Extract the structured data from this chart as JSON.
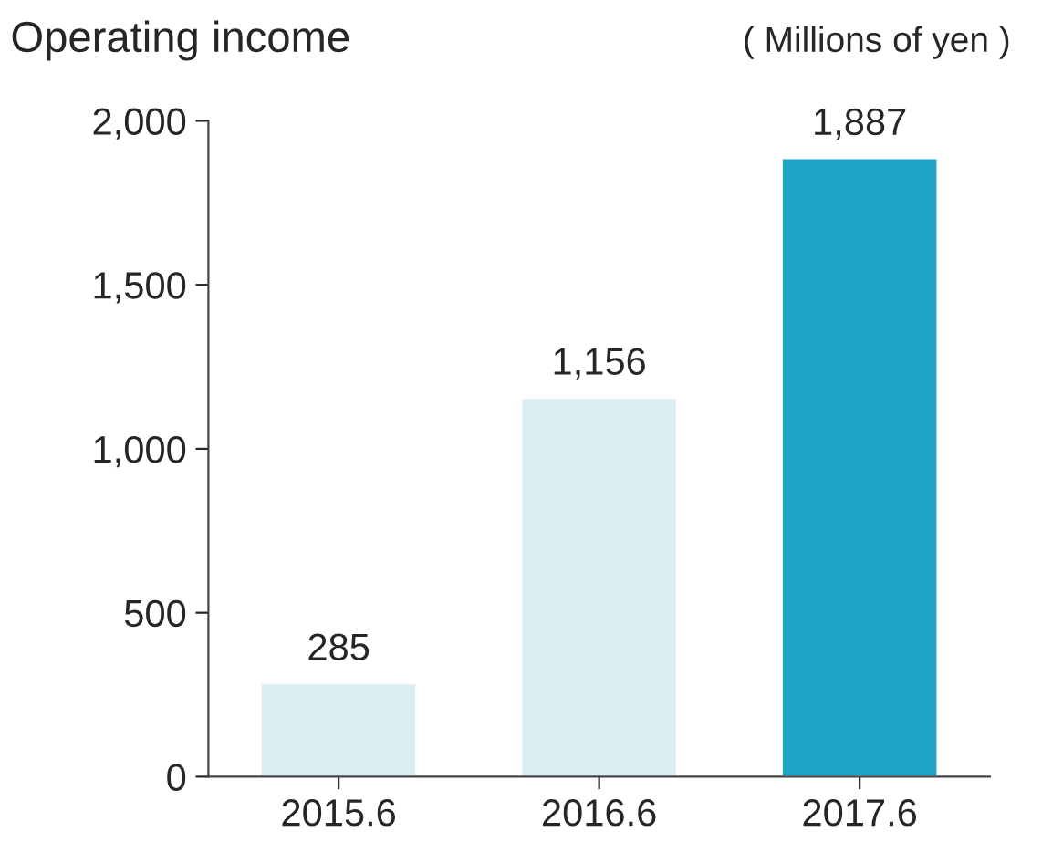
{
  "chart_data": {
    "type": "bar",
    "title": "Operating income",
    "annotations": [
      "( Millions of yen )"
    ],
    "categories": [
      "2015.6",
      "2016.6",
      "2017.6"
    ],
    "values": [
      285,
      1156,
      1887
    ],
    "colors": [
      "#daedf3",
      "#daedf3",
      "#1fa3c4"
    ],
    "ylim": [
      0,
      2000
    ],
    "yticks": [
      {
        "value": 0,
        "label": "0"
      },
      {
        "value": 500,
        "label": "500"
      },
      {
        "value": 1000,
        "label": "1,000"
      },
      {
        "value": 1500,
        "label": "1,500"
      },
      {
        "value": 2000,
        "label": "2,000"
      }
    ],
    "value_labels": [
      "285",
      "1,156",
      "1,887"
    ],
    "grid": false,
    "legend": false
  }
}
